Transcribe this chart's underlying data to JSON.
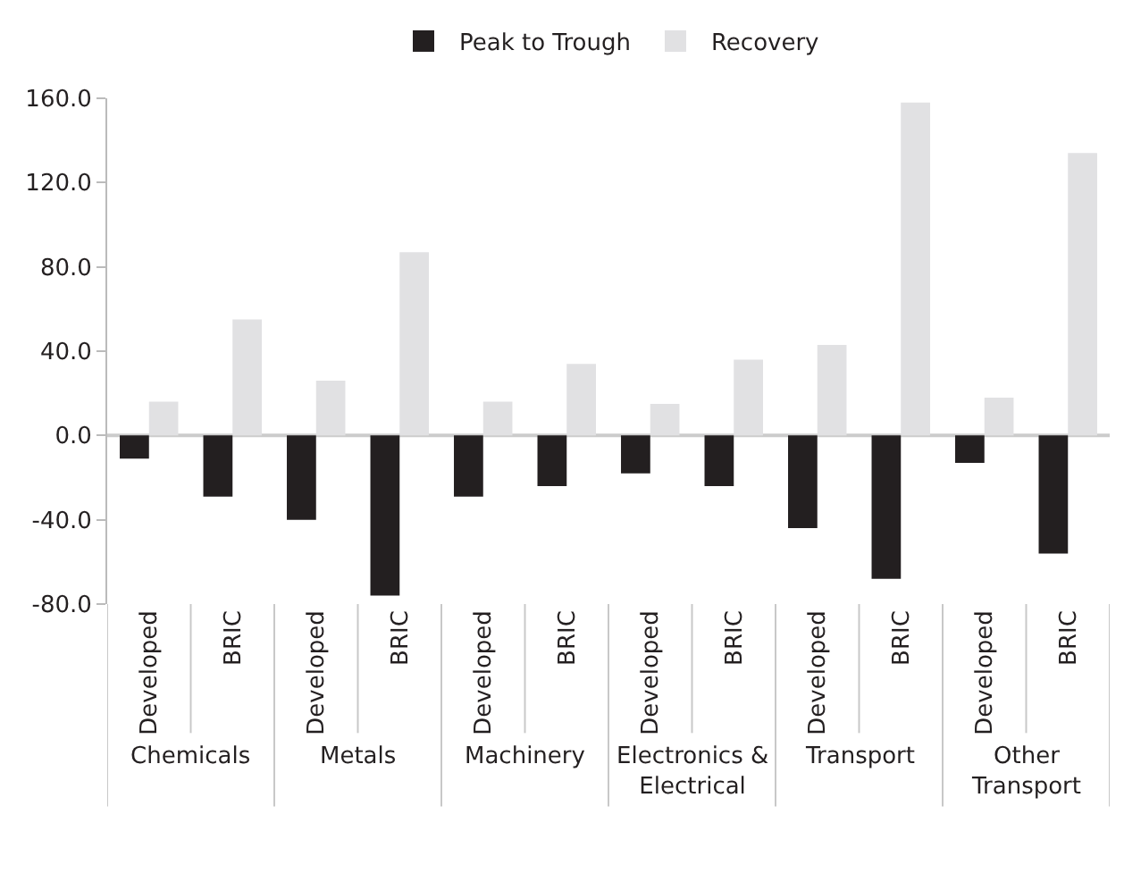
{
  "chart_data": {
    "type": "bar",
    "categories": [
      "Developed",
      "BRIC",
      "Developed",
      "BRIC",
      "Developed",
      "BRIC",
      "Developed",
      "BRIC",
      "Developed",
      "BRIC",
      "Developed",
      "BRIC"
    ],
    "series": [
      {
        "name": "Peak to Trough",
        "color": "#231f20",
        "values": [
          -11,
          -29,
          -40,
          -76,
          -29,
          -24,
          -18,
          -24,
          -44,
          -68,
          -13,
          -56
        ]
      },
      {
        "name": "Recovery",
        "color": "#e1e1e3",
        "values": [
          16,
          55,
          26,
          87,
          16,
          34,
          15,
          36,
          43,
          158,
          18,
          134
        ]
      }
    ],
    "annotations": [
      "Chemicals",
      "Metals",
      "Machinery",
      "Electronics &\nElectrical",
      "Transport",
      "Other\nTransport"
    ],
    "ylim": [
      -80,
      160
    ],
    "yticks": [
      {
        "value": -80,
        "label": "-80.0"
      },
      {
        "value": -40,
        "label": "-40.0"
      },
      {
        "value": 0,
        "label": "0.0"
      },
      {
        "value": 40,
        "label": "40.0"
      },
      {
        "value": 80,
        "label": "80.0"
      },
      {
        "value": 120,
        "label": "120.0"
      },
      {
        "value": 160,
        "label": "160.0"
      }
    ],
    "ref_lines": [
      {
        "axis": "y",
        "value": 0,
        "color": "#cccccc"
      }
    ],
    "legend": "top"
  }
}
